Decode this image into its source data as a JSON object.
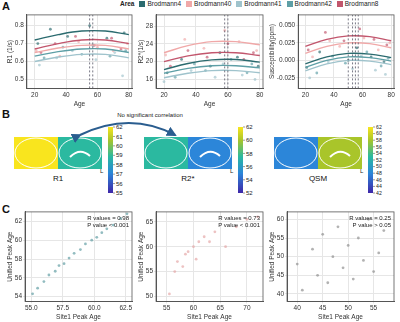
{
  "panel_labels": [
    "A",
    "B",
    "C"
  ],
  "legend_title": "Area",
  "chart_data": [
    {
      "type": "scatter",
      "x_label": "Age",
      "y_label": "R1 (1/s)",
      "grid": true,
      "xlim": [
        15,
        82
      ],
      "xticks": [
        20,
        40,
        60,
        80
      ],
      "ylim": [
        0.45,
        0.86
      ],
      "yticks": [
        0.5,
        0.6,
        0.7,
        0.8
      ],
      "fit_x": [
        20,
        35,
        50,
        65,
        80
      ],
      "peak_ages": [
        55,
        57
      ],
      "series": [
        {
          "name": "Brodmann4",
          "color": "#2b6b6f",
          "x": [
            22,
            30,
            41,
            55,
            66,
            77
          ],
          "values": [
            0.7,
            0.78,
            0.74,
            0.8,
            0.73,
            0.76
          ],
          "fit_values": [
            0.72,
            0.75,
            0.77,
            0.77,
            0.75
          ]
        },
        {
          "name": "Brodmann40",
          "color": "#f0a8a8",
          "x": [
            21,
            36,
            48,
            60,
            70,
            79
          ],
          "values": [
            0.66,
            0.63,
            0.71,
            0.68,
            0.66,
            0.7
          ],
          "fit_values": [
            0.65,
            0.675,
            0.69,
            0.69,
            0.67
          ]
        },
        {
          "name": "Brodmann41",
          "color": "#9fc3cc",
          "x": [
            23,
            34,
            44,
            59,
            71,
            76
          ],
          "values": [
            0.58,
            0.62,
            0.66,
            0.61,
            0.65,
            0.52
          ],
          "fit_values": [
            0.6,
            0.625,
            0.64,
            0.64,
            0.62
          ]
        },
        {
          "name": "Brodmann42",
          "color": "#5e9fa6",
          "x": [
            26,
            38,
            50,
            57,
            68,
            78
          ],
          "values": [
            0.62,
            0.68,
            0.64,
            0.69,
            0.63,
            0.66
          ],
          "fit_values": [
            0.63,
            0.655,
            0.67,
            0.67,
            0.65
          ]
        },
        {
          "name": "Brodmann8",
          "color": "#c2566d",
          "x": [
            24,
            33,
            46,
            58,
            69,
            75
          ],
          "values": [
            0.65,
            0.7,
            0.74,
            0.69,
            0.73,
            0.67
          ],
          "fit_values": [
            0.67,
            0.7,
            0.72,
            0.72,
            0.7
          ]
        }
      ]
    },
    {
      "type": "scatter",
      "x_label": "Age",
      "y_label": "R2*(1/s)",
      "grid": true,
      "xlim": [
        15,
        82
      ],
      "xticks": [
        20,
        40,
        60,
        80
      ],
      "ylim": [
        14,
        30.5
      ],
      "yticks": [
        16,
        20,
        24,
        28
      ],
      "fit_x": [
        20,
        35,
        50,
        65,
        80
      ],
      "peak_ages": [
        58,
        60
      ],
      "series": [
        {
          "name": "Brodmann4",
          "color": "#2b6b6f",
          "x": [
            22,
            31,
            49,
            55,
            66,
            79
          ],
          "values": [
            17.5,
            20.5,
            19,
            22,
            21,
            19
          ],
          "fit_values": [
            18.2,
            19.6,
            20.4,
            20.5,
            19.9
          ]
        },
        {
          "name": "Brodmann40",
          "color": "#f0a8a8",
          "x": [
            21,
            33,
            45,
            58,
            67,
            78
          ],
          "values": [
            21.5,
            25,
            23,
            27,
            24.5,
            22.5
          ],
          "fit_values": [
            22.0,
            23.6,
            24.5,
            24.5,
            23.8
          ]
        },
        {
          "name": "Brodmann41",
          "color": "#9fc3cc",
          "x": [
            20,
            37,
            52,
            57,
            69,
            77
          ],
          "values": [
            15.5,
            18,
            16.5,
            19.5,
            17,
            16
          ],
          "fit_values": [
            16.4,
            17.4,
            18.0,
            18.0,
            17.5
          ]
        },
        {
          "name": "Brodmann42",
          "color": "#5e9fa6",
          "x": [
            27,
            39,
            46,
            62,
            72,
            75
          ],
          "values": [
            16.5,
            19.5,
            18,
            20.5,
            17.5,
            19.5
          ],
          "fit_values": [
            17.4,
            18.5,
            19.1,
            19.1,
            18.6
          ]
        },
        {
          "name": "Brodmann8",
          "color": "#c2566d",
          "x": [
            24,
            35,
            47,
            60,
            70,
            76
          ],
          "values": [
            19,
            22.5,
            21,
            24,
            20.5,
            22
          ],
          "fit_values": [
            20.0,
            21.3,
            22.0,
            22.0,
            21.4
          ]
        }
      ]
    },
    {
      "type": "scatter",
      "x_label": "Age",
      "y_label": "Susceptibility(ppm)",
      "grid": true,
      "xlim": [
        15,
        82
      ],
      "xticks": [
        20,
        40,
        60,
        80
      ],
      "ylim": [
        -0.04,
        0.065
      ],
      "yticks": [
        -0.025,
        {
          "value": 0,
          "label": "0.000"
        },
        0.025,
        {
          "value": 0.05,
          "label": "0.050"
        }
      ],
      "fit_x": [
        20,
        35,
        50,
        65,
        80
      ],
      "peak_ages": [
        50,
        53,
        55,
        57
      ],
      "series": [
        {
          "name": "Brodmann4",
          "color": "#2b6b6f",
          "x": [
            21,
            30,
            50,
            56,
            66,
            75
          ],
          "values": [
            -0.01,
            0.012,
            0.0,
            0.018,
            0.005,
            -0.002
          ],
          "fit_values": [
            -0.005,
            0.005,
            0.01,
            0.009,
            0.004
          ]
        },
        {
          "name": "Brodmann40",
          "color": "#f0a8a8",
          "x": [
            25,
            37,
            44,
            61,
            71,
            79
          ],
          "values": [
            0.005,
            0.028,
            0.02,
            0.032,
            0.015,
            0.025
          ],
          "fit_values": [
            0.01,
            0.02,
            0.025,
            0.024,
            0.018
          ]
        },
        {
          "name": "Brodmann41",
          "color": "#9fc3cc",
          "x": [
            23,
            36,
            53,
            59,
            69,
            76
          ],
          "values": [
            -0.025,
            -0.002,
            -0.012,
            0.006,
            -0.014,
            -0.02
          ],
          "fit_values": [
            -0.015,
            -0.005,
            0.0,
            -0.001,
            -0.006
          ]
        },
        {
          "name": "Brodmann42",
          "color": "#5e9fa6",
          "x": [
            28,
            39,
            48,
            63,
            73,
            78
          ],
          "values": [
            -0.018,
            0.006,
            -0.004,
            0.012,
            -0.008,
            0.003
          ],
          "fit_values": [
            -0.01,
            0.0,
            0.005,
            0.004,
            -0.001
          ]
        },
        {
          "name": "Brodmann8",
          "color": "#c2566d",
          "x": [
            22,
            34,
            47,
            58,
            68,
            77
          ],
          "values": [
            0.015,
            0.04,
            0.028,
            0.045,
            0.03,
            0.022
          ],
          "fit_values": [
            0.02,
            0.03,
            0.035,
            0.034,
            0.028
          ]
        }
      ]
    },
    {
      "type": "scatter",
      "x_label": "Site1 Peak Age",
      "y_label": "Unified Peak Age",
      "grid": true,
      "xlim": [
        54.5,
        63
      ],
      "xticks": [
        {
          "value": 55,
          "label": "55.0"
        },
        57.5,
        {
          "value": 60,
          "label": "60.0"
        },
        62.5
      ],
      "ylim": [
        53.5,
        63
      ],
      "yticks": [
        54,
        56,
        58,
        60,
        62
      ],
      "annotation": [
        "R values = 0.98",
        "P value < 0.001"
      ],
      "series": [
        {
          "color": "#5b9aa0",
          "x": [
            55.1,
            55.5,
            56.0,
            56.4,
            56.9,
            57.2,
            57.6,
            58.0,
            58.4,
            58.9,
            59.3,
            59.8,
            60.2,
            60.6,
            61.0,
            61.5,
            62.1,
            62.6
          ],
          "values": [
            54.3,
            54.9,
            55.6,
            56.3,
            56.7,
            57.3,
            57.5,
            58.1,
            58.6,
            59.0,
            59.6,
            60.0,
            60.3,
            60.8,
            61.2,
            61.6,
            62.3,
            62.8
          ]
        }
      ]
    },
    {
      "type": "scatter",
      "x_label": "Site1 Peak Age",
      "y_label": "Unified Peak Age",
      "grid": true,
      "xlim": [
        53,
        73
      ],
      "xticks": [
        55,
        60,
        65,
        70
      ],
      "ylim": [
        49,
        67
      ],
      "yticks": [
        50,
        55,
        60,
        65
      ],
      "annotation": [
        "R values = 0.73",
        "P value < 0.001"
      ],
      "series": [
        {
          "color": "#e4a3a3",
          "x": [
            55.5,
            56.5,
            57,
            58,
            58.5,
            59,
            60,
            60.5,
            61,
            62,
            63,
            64,
            66,
            68,
            70,
            72
          ],
          "values": [
            50.5,
            55,
            57,
            56,
            58.5,
            59,
            60,
            57.5,
            61,
            62,
            61,
            63,
            60,
            64,
            65.5,
            66
          ]
        }
      ]
    },
    {
      "type": "scatter",
      "x_label": "Site1 Peak Age",
      "y_label": "Unified Peak Age",
      "grid": true,
      "xlim": [
        38,
        59
      ],
      "xticks": [
        40,
        45,
        50,
        55
      ],
      "ylim": [
        38,
        62
      ],
      "yticks": [
        40,
        45,
        50,
        55,
        60
      ],
      "annotation": [
        "R values = 0.25",
        "P value > 0.05"
      ],
      "series": [
        {
          "color": "#8c8c8c",
          "x": [
            40,
            41,
            43,
            44,
            45,
            46,
            47,
            48,
            49,
            50,
            51,
            52,
            53,
            54,
            55,
            56,
            57
          ],
          "values": [
            48,
            41,
            52,
            45,
            56,
            43,
            50,
            58,
            47,
            53,
            44,
            55,
            49,
            60,
            46,
            51,
            57
          ]
        }
      ]
    }
  ],
  "brain_maps": {
    "note": "No significant correlation",
    "hemisphere_label": "L",
    "maps": [
      {
        "label": "R1",
        "colorbar": {
          "range": [
            55,
            62
          ],
          "ticks": [
            55,
            56,
            57,
            58,
            59,
            60,
            61,
            62
          ]
        }
      },
      {
        "label": "R2*",
        "colorbar": {
          "range": [
            52,
            62
          ],
          "ticks": [
            52,
            54,
            56,
            58,
            60,
            62
          ]
        }
      },
      {
        "label": "QSM",
        "colorbar": {
          "range": [
            42,
            62
          ],
          "ticks": [
            42,
            44,
            46,
            48,
            50,
            52,
            54,
            56,
            58,
            60,
            62
          ]
        }
      }
    ]
  }
}
